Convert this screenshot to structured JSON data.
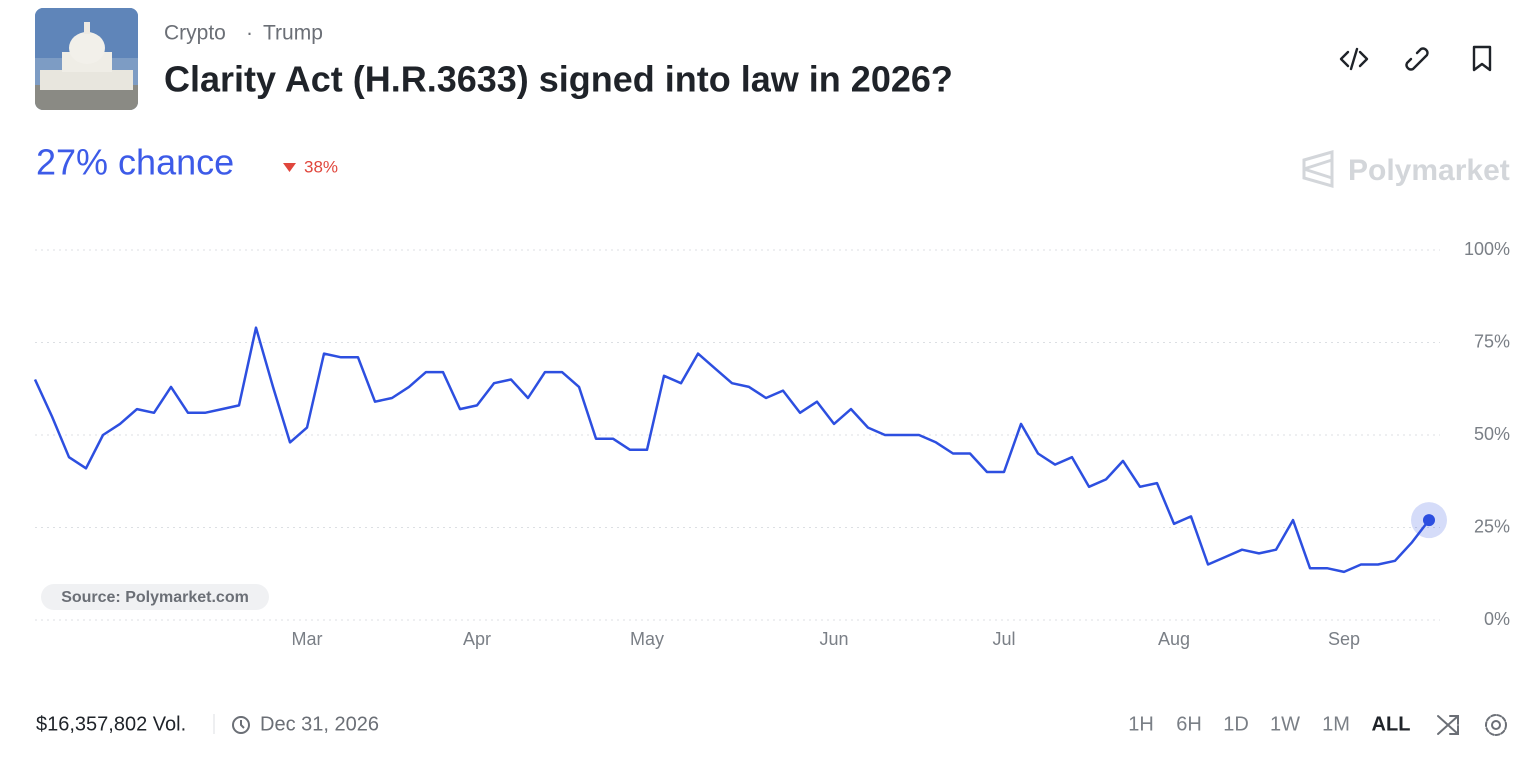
{
  "header": {
    "tags": [
      "Crypto",
      "Trump"
    ],
    "title": "Clarity Act (H.R.3633) signed into law in 2026?"
  },
  "chance": "27% chance",
  "change": "38%",
  "brand": "Polymarket",
  "chart_data": {
    "type": "line",
    "color": "#2d4fe0",
    "source": "Source: Polymarket.com",
    "categories": [
      null,
      null,
      null,
      null,
      null,
      null,
      null,
      null,
      null,
      null,
      null,
      null,
      null,
      null,
      null,
      null,
      "Mar",
      null,
      null,
      null,
      null,
      null,
      null,
      null,
      null,
      null,
      "Apr",
      null,
      null,
      null,
      null,
      null,
      null,
      null,
      null,
      null,
      "May",
      null,
      null,
      null,
      null,
      null,
      null,
      null,
      null,
      null,
      null,
      "Jun",
      null,
      null,
      null,
      null,
      null,
      null,
      null,
      null,
      null,
      "Jul",
      null,
      null,
      null,
      null,
      null,
      null,
      null,
      null,
      null,
      "Aug",
      null,
      null,
      null,
      null,
      null,
      null,
      null,
      null,
      null,
      "Sep",
      null,
      null,
      null,
      null,
      null
    ],
    "values": [
      65,
      55,
      44,
      41,
      50,
      53,
      57,
      56,
      63,
      56,
      56,
      57,
      58,
      79,
      63,
      48,
      52,
      72,
      71,
      71,
      59,
      60,
      63,
      67,
      67,
      57,
      58,
      64,
      65,
      60,
      67,
      67,
      63,
      49,
      49,
      46,
      46,
      66,
      64,
      72,
      68,
      64,
      63,
      60,
      62,
      56,
      59,
      53,
      57,
      52,
      50,
      50,
      50,
      48,
      45,
      45,
      40,
      40,
      53,
      45,
      42,
      44,
      36,
      38,
      43,
      36,
      37,
      26,
      28,
      15,
      17,
      19,
      18,
      19,
      27,
      14,
      14,
      13,
      15,
      15,
      16,
      21,
      27
    ],
    "ylim": [
      0,
      100
    ],
    "yticks": [
      {
        "value": 0,
        "label": "0%"
      },
      {
        "value": 25,
        "label": "25%"
      },
      {
        "value": 50,
        "label": "50%"
      },
      {
        "value": 75,
        "label": "75%"
      },
      {
        "value": 100,
        "label": "100%"
      }
    ],
    "grid": true
  },
  "footer": {
    "volume": "$16,357,802 Vol.",
    "end_date": "Dec 31, 2026",
    "ranges": [
      "1H",
      "6H",
      "1D",
      "1W",
      "1M",
      "ALL"
    ]
  }
}
